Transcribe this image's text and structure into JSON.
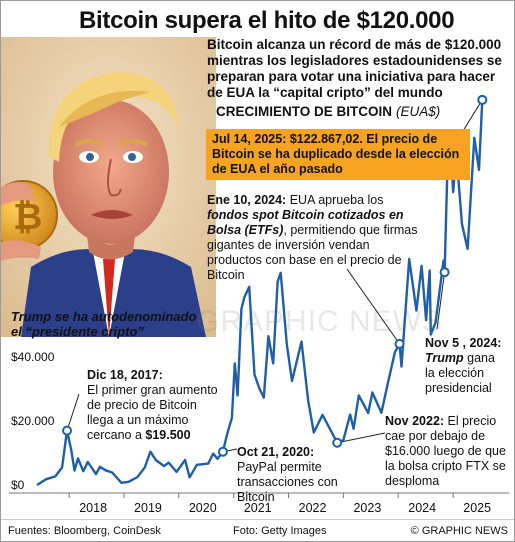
{
  "header": {
    "title": "Bitcoin supera el hito de $120.000",
    "subtitle": "Bitcoin alcanza un récord de más de $120.000 mientras los legisladores estadounidenses se preparan para votar una iniciativa para hacer de EUA la “capital cripto” del mundo"
  },
  "caption": {
    "line1": "Trump se ha autodenominado",
    "line2": "el “presidente cripto”"
  },
  "watermark": "GRAPHIC NEWS",
  "annotations": {
    "jul2025": "Jul 14, 2025: $122.867,02. El precio de Bitcoin se ha duplicado desde la elección de EUA el año pasado",
    "jan2024_date": "Ene 10, 2024:",
    "jan2024_a": "EUA aprueba los",
    "jan2024_b": "fondos spot Bitcoin cotizados en Bolsa (ETFs)",
    "jan2024_c": ", permitiendo que firmas gigantes de inversión vendan productos con base en el precio de Bitcoin",
    "nov2024_date": "Nov 5 , 2024:",
    "nov2024_name": "Trump",
    "nov2024_a": " gana",
    "nov2024_b": "la elección presidencial",
    "dec2017_date": "Dic 18, 2017:",
    "dec2017_a": "El primer gran aumento de precio de Bitcoin llega a un máximo cercano a ",
    "dec2017_b": "$19.500",
    "oct2020_date": "Oct 21, 2020:",
    "oct2020_a": "PayPal permite transacciones con Bitcoin",
    "nov2022_date": "Nov 2022:",
    "nov2022_a": "El precio cae por debajo de $16.000 luego de que la bolsa cripto FTX se desploma"
  },
  "footer": {
    "sources": "Fuentes: Bloomberg, CoinDesk",
    "photo": "Foto: Getty Images",
    "brand": "© GRAPHIC NEWS"
  },
  "colors": {
    "line": "#1f5fa8",
    "marker": "#1f5fa8",
    "callout": "#f6a321",
    "gridline": "#cccccc"
  },
  "chart_data": {
    "type": "line",
    "title": "CRECIMIENTO DE BITCOIN",
    "unit": "(EUA$)",
    "xlabel": "",
    "ylabel": "",
    "x_ticks": [
      "2018",
      "2019",
      "2020",
      "2021",
      "2022",
      "2023",
      "2024",
      "2025"
    ],
    "y_ticks": [
      {
        "value": 0,
        "label": "$0"
      },
      {
        "value": 20000,
        "label": "$20.000"
      },
      {
        "value": 40000,
        "label": "$40.000"
      }
    ],
    "xlim": [
      "2017-06-01",
      "2025-08-01"
    ],
    "ylim": [
      0,
      125000
    ],
    "grid": false,
    "series": [
      {
        "points": [
          [
            "2017-06-01",
            2500
          ],
          [
            "2017-08-01",
            4300
          ],
          [
            "2017-10-01",
            5200
          ],
          [
            "2017-11-15",
            8000
          ],
          [
            "2017-12-18",
            19500
          ],
          [
            "2018-01-15",
            13500
          ],
          [
            "2018-02-06",
            7000
          ],
          [
            "2018-03-01",
            10800
          ],
          [
            "2018-04-05",
            6800
          ],
          [
            "2018-05-05",
            9700
          ],
          [
            "2018-06-29",
            5900
          ],
          [
            "2018-07-25",
            8200
          ],
          [
            "2018-09-01",
            7100
          ],
          [
            "2018-10-15",
            6400
          ],
          [
            "2018-12-15",
            3200
          ],
          [
            "2019-02-01",
            3500
          ],
          [
            "2019-04-01",
            5000
          ],
          [
            "2019-05-20",
            8000
          ],
          [
            "2019-06-26",
            12900
          ],
          [
            "2019-08-01",
            10300
          ],
          [
            "2019-09-25",
            8400
          ],
          [
            "2019-10-26",
            9500
          ],
          [
            "2019-12-17",
            6600
          ],
          [
            "2020-02-12",
            10300
          ],
          [
            "2020-03-13",
            4900
          ],
          [
            "2020-05-01",
            8800
          ],
          [
            "2020-07-15",
            9200
          ],
          [
            "2020-08-17",
            12300
          ],
          [
            "2020-09-15",
            10700
          ],
          [
            "2020-10-21",
            12900
          ],
          [
            "2020-11-20",
            18700
          ],
          [
            "2020-12-20",
            23500
          ],
          [
            "2021-01-08",
            40500
          ],
          [
            "2021-01-27",
            30500
          ],
          [
            "2021-02-21",
            57500
          ],
          [
            "2021-03-13",
            61200
          ],
          [
            "2021-04-14",
            64400
          ],
          [
            "2021-05-19",
            37000
          ],
          [
            "2021-06-22",
            32500
          ],
          [
            "2021-07-20",
            29800
          ],
          [
            "2021-08-20",
            49000
          ],
          [
            "2021-09-21",
            40500
          ],
          [
            "2021-10-20",
            66000
          ],
          [
            "2021-11-10",
            68800
          ],
          [
            "2021-12-20",
            46500
          ],
          [
            "2022-01-24",
            35000
          ],
          [
            "2022-03-28",
            47300
          ],
          [
            "2022-05-12",
            28800
          ],
          [
            "2022-06-18",
            18900
          ],
          [
            "2022-08-15",
            24400
          ],
          [
            "2022-10-15",
            19000
          ],
          [
            "2022-11-21",
            15700
          ],
          [
            "2023-01-01",
            16600
          ],
          [
            "2023-02-15",
            24500
          ],
          [
            "2023-03-10",
            20100
          ],
          [
            "2023-04-14",
            30500
          ],
          [
            "2023-06-15",
            25000
          ],
          [
            "2023-07-13",
            31400
          ],
          [
            "2023-09-11",
            25100
          ],
          [
            "2023-10-25",
            34500
          ],
          [
            "2023-12-10",
            44000
          ],
          [
            "2024-01-10",
            46600
          ],
          [
            "2024-01-23",
            39500
          ],
          [
            "2024-03-14",
            73100
          ],
          [
            "2024-05-01",
            57000
          ],
          [
            "2024-06-05",
            71000
          ],
          [
            "2024-07-05",
            54000
          ],
          [
            "2024-07-29",
            69500
          ],
          [
            "2024-08-05",
            49500
          ],
          [
            "2024-09-06",
            53300
          ],
          [
            "2024-10-29",
            72600
          ],
          [
            "2024-11-05",
            69000
          ],
          [
            "2024-11-22",
            99000
          ],
          [
            "2024-12-17",
            106000
          ],
          [
            "2025-01-01",
            94000
          ],
          [
            "2025-01-21",
            106500
          ],
          [
            "2025-03-01",
            84000
          ],
          [
            "2025-04-07",
            76300
          ],
          [
            "2025-05-22",
            111000
          ],
          [
            "2025-06-22",
            101000
          ],
          [
            "2025-07-14",
            122867
          ]
        ]
      }
    ],
    "markers": [
      {
        "date": "2017-12-18",
        "value": 19500
      },
      {
        "date": "2020-10-21",
        "value": 12900
      },
      {
        "date": "2022-11-21",
        "value": 15700
      },
      {
        "date": "2024-01-10",
        "value": 46600
      },
      {
        "date": "2024-11-05",
        "value": 69000
      },
      {
        "date": "2025-07-14",
        "value": 122867
      }
    ]
  }
}
